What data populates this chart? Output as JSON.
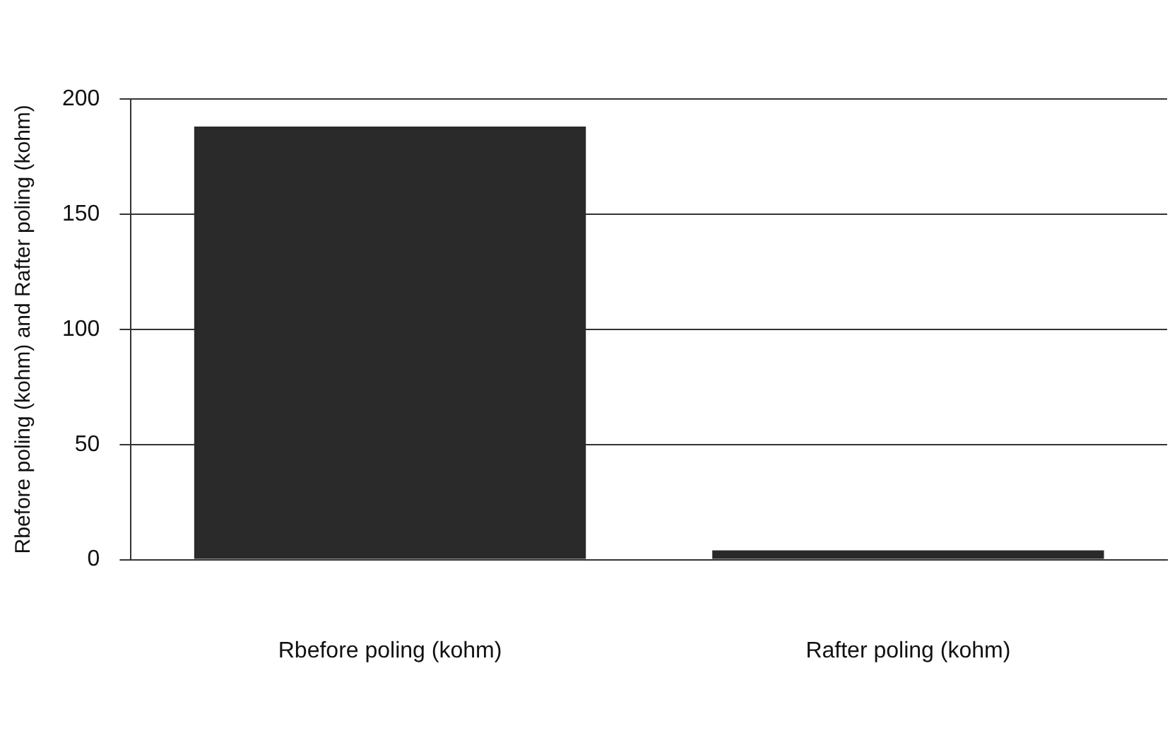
{
  "chart_data": {
    "type": "bar",
    "ylabel": "Rbefore poling (kohm) and Rafter poling (kohm)",
    "categories": [
      "Rbefore poling (kohm)",
      "Rafter poling (kohm)"
    ],
    "values": [
      188,
      4
    ],
    "color": "#2a2a2a",
    "ylim": [
      0,
      200
    ],
    "yticks": [
      0,
      50,
      100,
      150,
      200
    ],
    "grid": "y",
    "legend": false
  }
}
